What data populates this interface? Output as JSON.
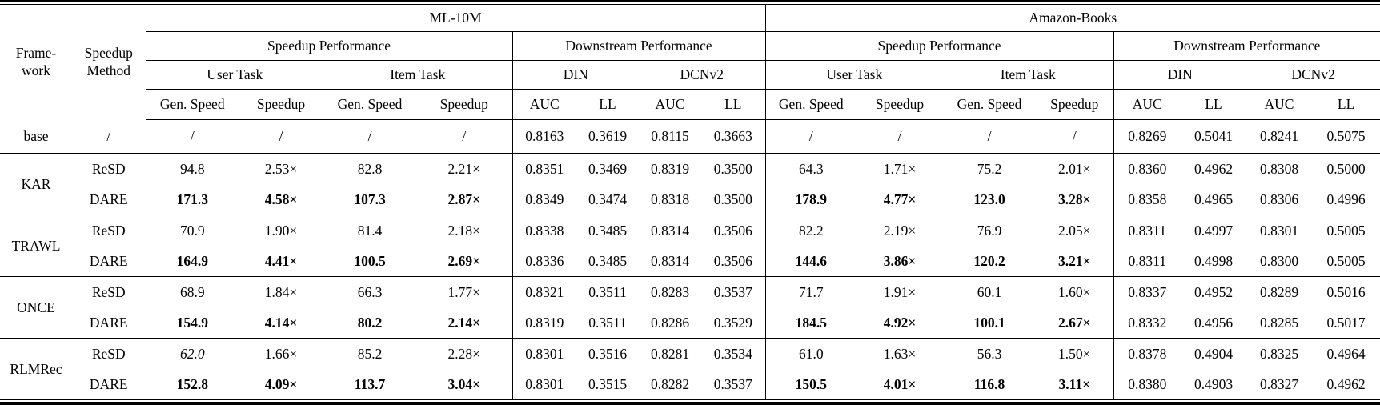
{
  "table": {
    "header": {
      "framework": "Frame-\nwork",
      "method": "Speedup\nMethod",
      "datasets": [
        "ML-10M",
        "Amazon-Books"
      ],
      "sections": [
        "Speedup Performance",
        "Downstream Performance"
      ],
      "task_groups": [
        "User Task",
        "Item Task"
      ],
      "model_groups": [
        "DIN",
        "DCNv2"
      ],
      "speed_cols": [
        "Gen. Speed",
        "Speedup"
      ],
      "metric_cols": [
        "AUC",
        "LL"
      ]
    },
    "groups": [
      {
        "framework": "base",
        "rows": [
          {
            "method": "/",
            "bold_speed": false,
            "values": [
              "/",
              "/",
              "/",
              "/",
              "0.8163",
              "0.3619",
              "0.8115",
              "0.3663",
              "/",
              "/",
              "/",
              "/",
              "0.8269",
              "0.5041",
              "0.8241",
              "0.5075"
            ]
          }
        ]
      },
      {
        "framework": "KAR",
        "rows": [
          {
            "method": "ReSD",
            "bold_speed": false,
            "values": [
              "94.8",
              "2.53×",
              "82.8",
              "2.21×",
              "0.8351",
              "0.3469",
              "0.8319",
              "0.3500",
              "64.3",
              "1.71×",
              "75.2",
              "2.01×",
              "0.8360",
              "0.4962",
              "0.8308",
              "0.5000"
            ]
          },
          {
            "method": "DARE",
            "bold_speed": true,
            "values": [
              "171.3",
              "4.58×",
              "107.3",
              "2.87×",
              "0.8349",
              "0.3474",
              "0.8318",
              "0.3500",
              "178.9",
              "4.77×",
              "123.0",
              "3.28×",
              "0.8358",
              "0.4965",
              "0.8306",
              "0.4996"
            ]
          }
        ]
      },
      {
        "framework": "TRAWL",
        "rows": [
          {
            "method": "ReSD",
            "bold_speed": false,
            "values": [
              "70.9",
              "1.90×",
              "81.4",
              "2.18×",
              "0.8338",
              "0.3485",
              "0.8314",
              "0.3506",
              "82.2",
              "2.19×",
              "76.9",
              "2.05×",
              "0.8311",
              "0.4997",
              "0.8301",
              "0.5005"
            ]
          },
          {
            "method": "DARE",
            "bold_speed": true,
            "values": [
              "164.9",
              "4.41×",
              "100.5",
              "2.69×",
              "0.8336",
              "0.3485",
              "0.8314",
              "0.3506",
              "144.6",
              "3.86×",
              "120.2",
              "3.21×",
              "0.8311",
              "0.4998",
              "0.8300",
              "0.5005"
            ]
          }
        ]
      },
      {
        "framework": "ONCE",
        "rows": [
          {
            "method": "ReSD",
            "bold_speed": false,
            "values": [
              "68.9",
              "1.84×",
              "66.3",
              "1.77×",
              "0.8321",
              "0.3511",
              "0.8283",
              "0.3537",
              "71.7",
              "1.91×",
              "60.1",
              "1.60×",
              "0.8337",
              "0.4952",
              "0.8289",
              "0.5016"
            ]
          },
          {
            "method": "DARE",
            "bold_speed": true,
            "values": [
              "154.9",
              "4.14×",
              "80.2",
              "2.14×",
              "0.8319",
              "0.3511",
              "0.8286",
              "0.3529",
              "184.5",
              "4.92×",
              "100.1",
              "2.67×",
              "0.8332",
              "0.4956",
              "0.8285",
              "0.5017"
            ]
          }
        ]
      },
      {
        "framework": "RLMRec",
        "rows": [
          {
            "method": "ReSD",
            "bold_speed": false,
            "italic_cells": [
              0
            ],
            "values": [
              "62.0",
              "1.66×",
              "85.2",
              "2.28×",
              "0.8301",
              "0.3516",
              "0.8281",
              "0.3534",
              "61.0",
              "1.63×",
              "56.3",
              "1.50×",
              "0.8378",
              "0.4904",
              "0.8325",
              "0.4964"
            ]
          },
          {
            "method": "DARE",
            "bold_speed": true,
            "values": [
              "152.8",
              "4.09×",
              "113.7",
              "3.04×",
              "0.8301",
              "0.3515",
              "0.8282",
              "0.3537",
              "150.5",
              "4.01×",
              "116.8",
              "3.11×",
              "0.8380",
              "0.4903",
              "0.8327",
              "0.4962"
            ]
          }
        ]
      }
    ]
  }
}
